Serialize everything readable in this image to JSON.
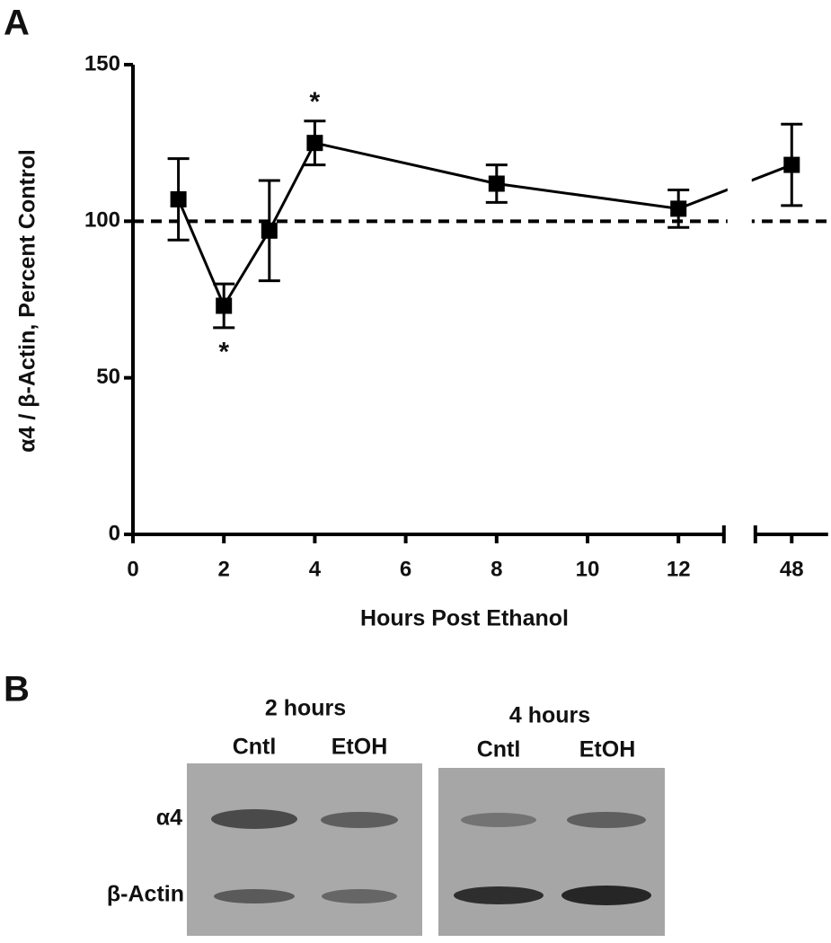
{
  "panel_labels": [
    "A",
    "B"
  ],
  "chart_data": {
    "type": "line",
    "x_label": "Hours Post Ethanol",
    "y_label": "α4 / β-Actin, Percent Control",
    "x": [
      1,
      2,
      3,
      4,
      8,
      12,
      48
    ],
    "series": [
      {
        "color": "#000000",
        "values": [
          107,
          73,
          97,
          125,
          112,
          104,
          118
        ],
        "errors": [
          13,
          7,
          16,
          7,
          6,
          6,
          13
        ]
      }
    ],
    "xlim": [
      0,
      48.8
    ],
    "xbreak": [
      13,
      47.2
    ],
    "xticks": [
      0,
      2,
      4,
      6,
      8,
      10,
      12,
      48
    ],
    "ylim": [
      0,
      150
    ],
    "yticks": [
      0,
      50,
      100,
      150
    ],
    "reference_line": 100,
    "annotations": [
      {
        "text": "*",
        "x": 2,
        "y": 60
      },
      {
        "text": "*",
        "x": 4,
        "y": 140
      }
    ]
  },
  "blot": {
    "groups": [
      {
        "title": "2 hours",
        "lanes": [
          "Cntl",
          "EtOH"
        ]
      },
      {
        "title": "4 hours",
        "lanes": [
          "Cntl",
          "EtOH"
        ]
      }
    ],
    "rows": [
      "α4",
      "β-Actin"
    ]
  }
}
